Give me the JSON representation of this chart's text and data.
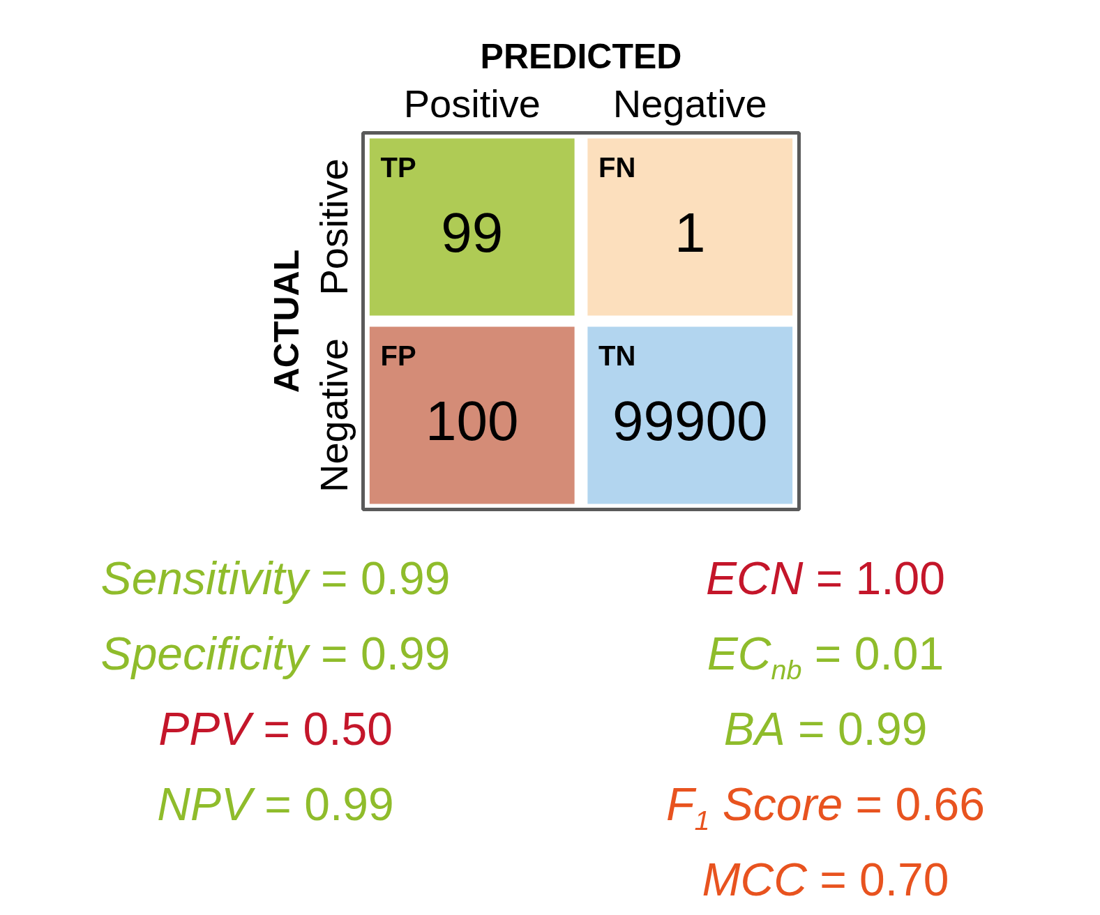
{
  "chart_data": {
    "type": "heatmap",
    "xlabel": "PREDICTED",
    "ylabel": "ACTUAL",
    "categories": [
      "Positive",
      "Negative"
    ],
    "y_categories": [
      "Positive",
      "Negative"
    ],
    "cells": [
      [
        99,
        1
      ],
      [
        100,
        99900
      ]
    ],
    "data_labels": true,
    "colors": [
      "#afcb55",
      "#fcdfbd",
      "#d48c77",
      "#b2d5ef"
    ],
    "annotations": [
      "TP",
      "FN",
      "FP",
      "TN",
      "Sensitivity = 0.99",
      "Specificity = 0.99",
      "PPV = 0.50",
      "NPV = 0.99",
      "ECN = 1.00",
      "EC$_{nb}$ = 0.01",
      "BA = 0.99",
      "F$_{1}$ Score = 0.66",
      "MCC = 0.70"
    ]
  }
}
